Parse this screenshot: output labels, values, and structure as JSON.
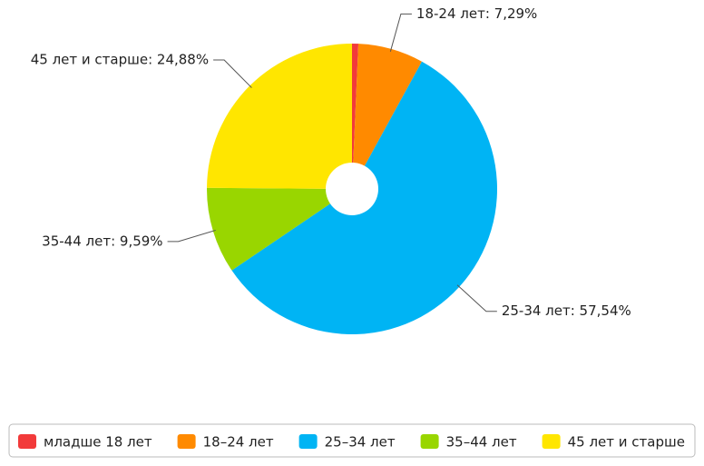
{
  "chart_data": {
    "type": "pie",
    "categories": [
      "младше 18 лет",
      "18–24 лет",
      "25–34 лет",
      "35–44 лет",
      "45 лет и старше"
    ],
    "values": [
      0.7,
      7.29,
      57.54,
      9.59,
      24.88
    ],
    "value_labels": [
      null,
      "18-24 лет: 7,29%",
      "25-34 лет: 57,54%",
      "35-44 лет: 9,59%",
      "45 лет и старше: 24,88%"
    ],
    "colors": [
      "#f23a3a",
      "#ff8a00",
      "#00b4f4",
      "#99d600",
      "#ffe600"
    ],
    "legend": "bottom"
  }
}
